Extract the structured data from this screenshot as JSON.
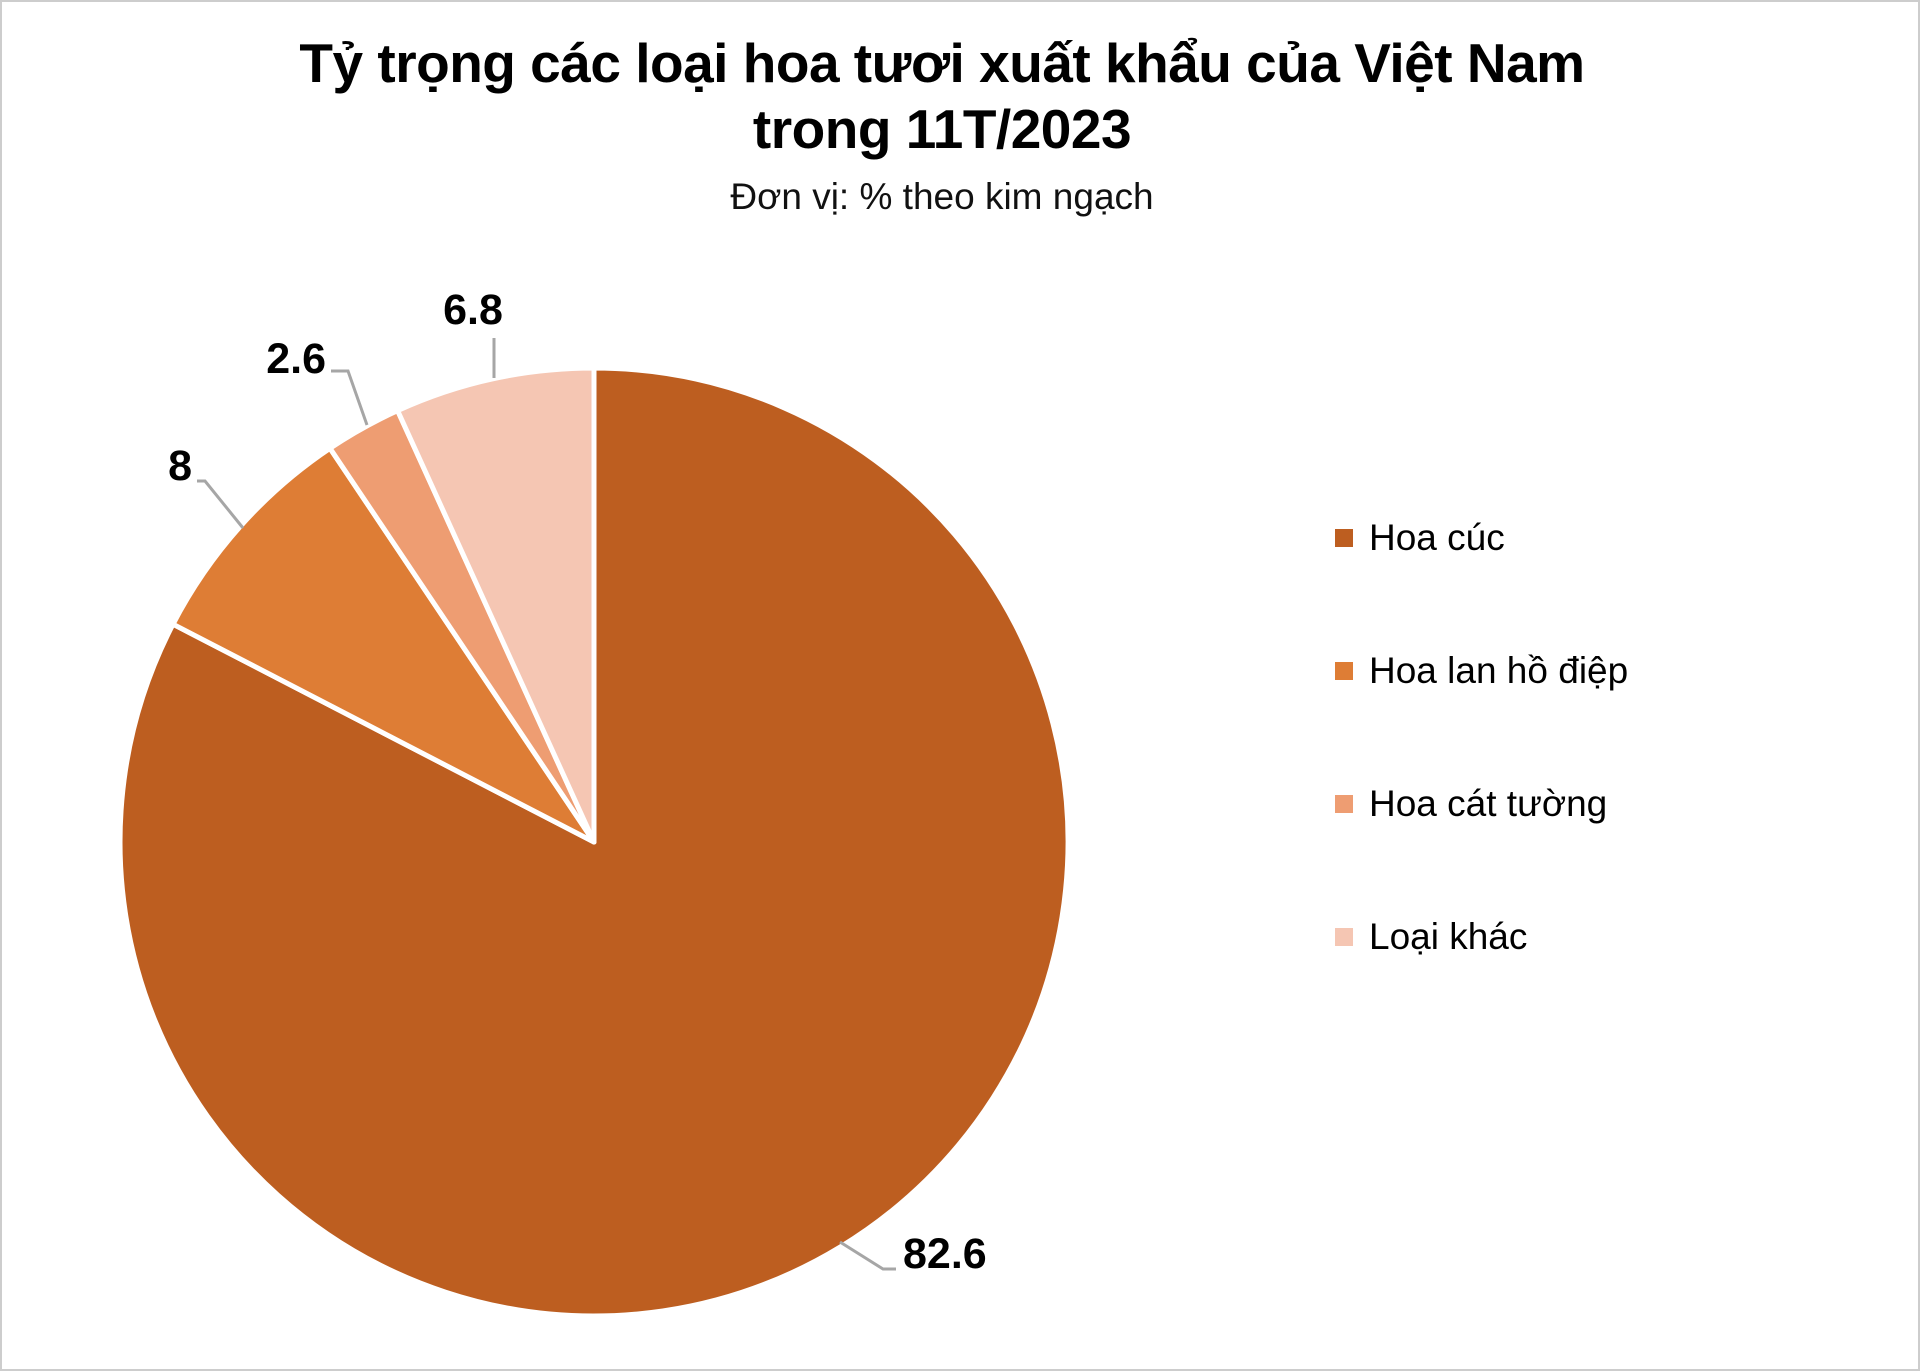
{
  "header": {
    "title_line1": "Tỷ trọng các loại hoa tươi xuất khẩu của Việt Nam",
    "title_line2": "trong 11T/2023",
    "subtitle": "Đơn vị: % theo kim ngạch"
  },
  "chart_data": {
    "type": "pie",
    "title": "Tỷ trọng các loại hoa tươi xuất khẩu của Việt Nam trong 11T/2023",
    "subtitle": "Đơn vị: % theo kim ngạch",
    "unit": "% theo kim ngạch",
    "categories": [
      "Hoa cúc",
      "Hoa lan hồ điệp",
      "Hoa cát tường",
      "Loại khác"
    ],
    "values": [
      82.6,
      8,
      2.6,
      6.8
    ],
    "value_labels": [
      "82.6",
      "8",
      "2.6",
      "6.8"
    ],
    "colors": [
      "#BD5E20",
      "#DE7D35",
      "#EE9D72",
      "#F5C6B3"
    ],
    "slice_border_color": "#FFFFFF",
    "leader_line_color": "#A6A6A6",
    "start_angle_deg": 0,
    "direction": "clockwise",
    "legend_position": "right",
    "data_label_style": "outside-end"
  }
}
